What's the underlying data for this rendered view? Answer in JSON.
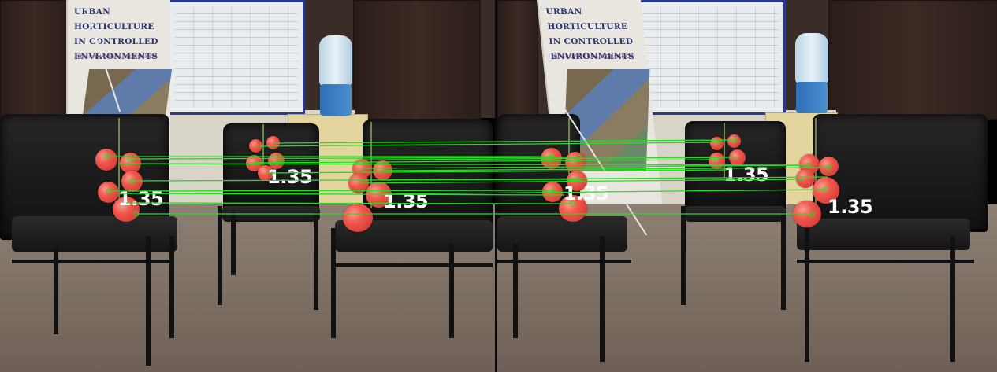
{
  "scene": {
    "banner_text_lines": [
      "URBAN HORTICULTURE",
      "IN CONTROLLED",
      "ENVIRONMENTS"
    ],
    "banner_subtitle": "INTERNATIONAL WORKSHOP",
    "match_line_color": "#22e01e",
    "tomato_color": "#f0574c"
  },
  "left_view": {
    "labels": [
      "1.35",
      "1.35",
      "1.35"
    ]
  },
  "right_view": {
    "labels": [
      "1.35",
      "1.35",
      "1.35"
    ]
  },
  "matches": [
    {
      "from": "left-cluster-1",
      "to": "right-cluster-1"
    },
    {
      "from": "left-cluster-2",
      "to": "right-cluster-2"
    },
    {
      "from": "left-cluster-3",
      "to": "right-cluster-3"
    }
  ]
}
